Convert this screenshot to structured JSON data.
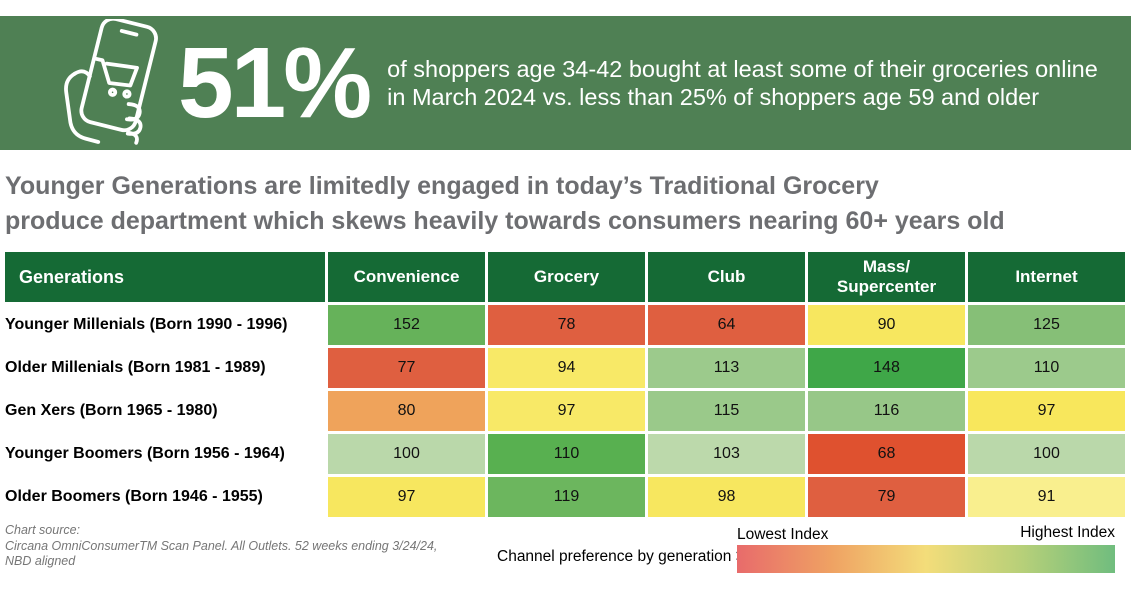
{
  "banner": {
    "stat": "51%",
    "description_line1": "of shoppers age 34-42 bought at least some of their groceries online",
    "description_line2": "in March 2024 vs. less than 25% of shoppers age 59 and older",
    "bg_color": "#4f8054",
    "icon": "hand-holding-phone-shopping-cart-icon"
  },
  "headline": {
    "line1": "Younger Generations are limitedly engaged in today’s Traditional Grocery",
    "line2": "produce department which skews heavily towards consumers nearing 60+ years old"
  },
  "chart_data": {
    "type": "heatmap",
    "title": "Younger Generations are limitedly engaged in today’s Traditional Grocery produce department which skews heavily towards consumers nearing 60+ years old",
    "corner_header": "Generations",
    "columns": [
      "Convenience",
      "Grocery",
      "Club",
      "Mass/\nSupercenter",
      "Internet"
    ],
    "header_bg": "#156a35",
    "rows": [
      {
        "label": "Younger Millenials (Born 1990 - 1996)",
        "values": [
          152,
          78,
          64,
          90,
          125
        ],
        "colors": [
          "#66b25a",
          "#df5f40",
          "#df5f40",
          "#f7e75f",
          "#86bf77"
        ]
      },
      {
        "label": "Older Millenials (Born 1981 - 1989)",
        "values": [
          77,
          94,
          113,
          148,
          110
        ],
        "colors": [
          "#df5f40",
          "#f8e967",
          "#9cca8c",
          "#3fa748",
          "#9cca8c"
        ]
      },
      {
        "label": "Gen Xers (Born 1965 - 1980)",
        "values": [
          80,
          97,
          115,
          116,
          97
        ],
        "colors": [
          "#efa35b",
          "#f8e967",
          "#9ac98a",
          "#97c788",
          "#f8e75c"
        ]
      },
      {
        "label": "Younger Boomers (Born 1956 - 1964)",
        "values": [
          100,
          110,
          103,
          68,
          100
        ],
        "colors": [
          "#bad8aa",
          "#58b050",
          "#bcd9ab",
          "#df512f",
          "#bad8aa"
        ]
      },
      {
        "label": "Older Boomers (Born 1946 - 1955)",
        "values": [
          97,
          119,
          98,
          79,
          91
        ],
        "colors": [
          "#f7e75f",
          "#6cb65e",
          "#f7e75f",
          "#df5f40",
          "#f9ef8e"
        ]
      }
    ],
    "legend": {
      "caption": "Channel preference by generation >",
      "lowest_label": "Lowest Index",
      "highest_label": "Highest Index",
      "gradient": [
        "#e86b6b",
        "#efa263",
        "#f3dd7a",
        "#b8d079",
        "#70bd7e"
      ]
    }
  },
  "footer": {
    "source_line1": "Chart source:",
    "source_line2": "Circana OmniConsumerTM Scan Panel. All Outlets. 52 weeks ending 3/24/24,",
    "source_line3": "NBD aligned"
  }
}
